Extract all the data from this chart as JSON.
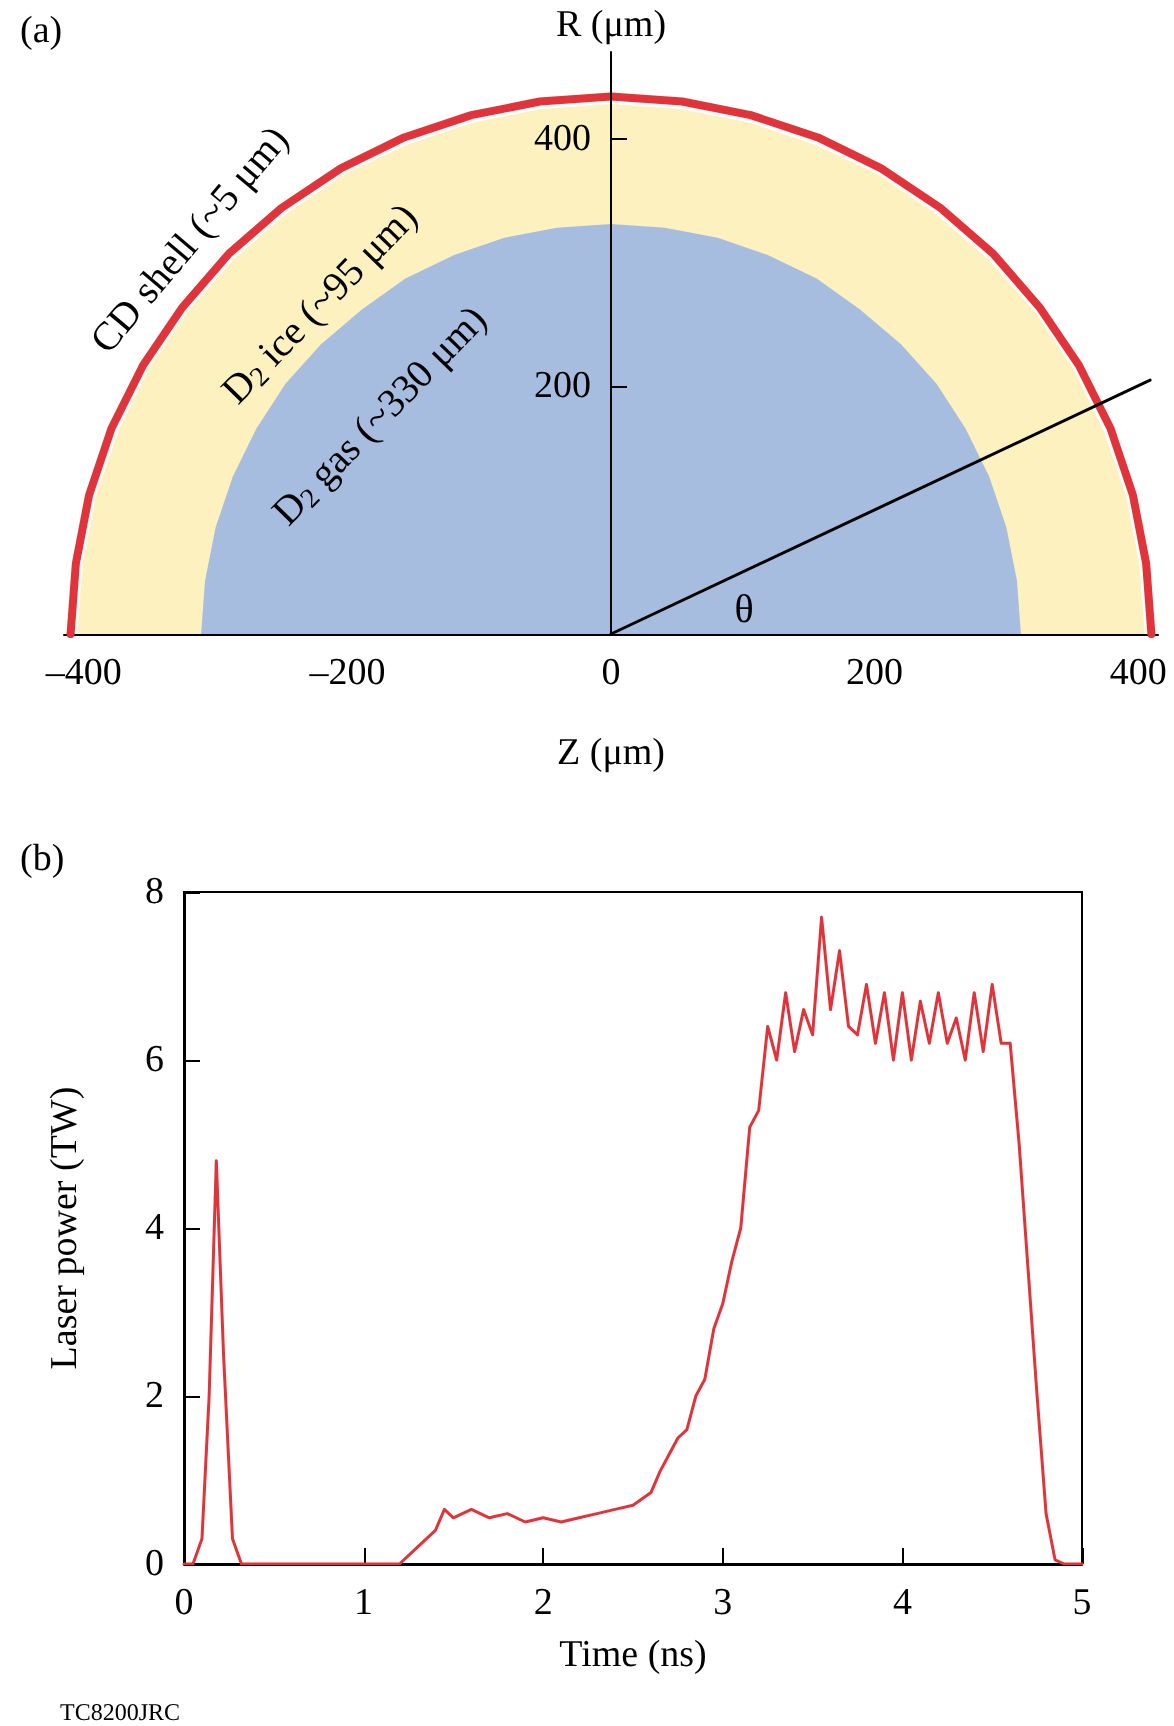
{
  "chart_data": [
    {
      "type": "area",
      "title": "(a)",
      "xlabel": "Z (μm)",
      "ylabel": "R (μm)",
      "xlim": [
        -415,
        415
      ],
      "ylim": [
        0,
        470
      ],
      "xticks": [
        {
          "value": -400,
          "label": "–400"
        },
        {
          "value": -200,
          "label": "–200"
        },
        0,
        200,
        400
      ],
      "yticks": [
        200,
        400
      ],
      "marker": "none",
      "annotations": [
        "CD shell (~5 μm)",
        "D$_{2}$ ice (~95 μm)",
        "D$_{2}$ gas (~330 μm)",
        "θ"
      ],
      "series": [
        {
          "type": "area",
          "color": "#fdf1c0",
          "x": [
            405,
            401,
            391,
            374,
            351,
            321,
            286,
            247,
            203,
            155,
            105,
            53,
            0,
            -53,
            -105,
            -155,
            -203,
            -247,
            -286,
            -321,
            -351,
            -374,
            -391,
            -401,
            -405
          ],
          "values": [
            0,
            56,
            111,
            164,
            214,
            261,
            303,
            339,
            371,
            395,
            413,
            424,
            428,
            424,
            413,
            395,
            371,
            339,
            303,
            261,
            214,
            164,
            111,
            56,
            0
          ]
        },
        {
          "type": "area",
          "color": "#a6bde0",
          "x": [
            311,
            308,
            300,
            287,
            269,
            247,
            220,
            189,
            156,
            119,
            81,
            41,
            0,
            -41,
            -81,
            -119,
            -156,
            -189,
            -220,
            -247,
            -269,
            -287,
            -300,
            -308,
            -311
          ],
          "values": [
            0,
            43,
            86,
            127,
            166,
            202,
            234,
            262,
            287,
            306,
            320,
            328,
            331,
            328,
            320,
            306,
            287,
            262,
            234,
            202,
            166,
            127,
            86,
            43,
            0
          ]
        },
        {
          "type": "line",
          "color": "#e0343a",
          "x": [
            410,
            406,
            396,
            379,
            355,
            325,
            290,
            250,
            205,
            157,
            106,
            54,
            0,
            -54,
            -106,
            -157,
            -205,
            -250,
            -290,
            -325,
            -355,
            -379,
            -396,
            -406,
            -410
          ],
          "values": [
            0,
            57,
            112,
            166,
            217,
            264,
            307,
            344,
            376,
            401,
            419,
            430,
            434,
            430,
            419,
            401,
            376,
            344,
            307,
            264,
            217,
            166,
            112,
            57,
            0
          ]
        },
        {
          "type": "line",
          "color": "#000000",
          "x": [
            0,
            409
          ],
          "values": [
            0,
            205
          ]
        }
      ]
    },
    {
      "type": "line",
      "title": "(b)",
      "xlabel": "Time (ns)",
      "ylabel": "Laser power (TW)",
      "xlim": [
        0,
        5
      ],
      "ylim": [
        0,
        8
      ],
      "xticks": [
        0,
        1,
        2,
        3,
        4,
        5
      ],
      "yticks": [
        0,
        2,
        4,
        6,
        8
      ],
      "marker": "none",
      "annotations": [
        "TC8200JRC"
      ],
      "series": [
        {
          "color": "#e0343a",
          "x": [
            0,
            0.05,
            0.1,
            0.14,
            0.18,
            0.22,
            0.27,
            0.32,
            1.2,
            1.3,
            1.4,
            1.45,
            1.5,
            1.6,
            1.7,
            1.8,
            1.9,
            2.0,
            2.1,
            2.2,
            2.3,
            2.4,
            2.5,
            2.6,
            2.65,
            2.7,
            2.75,
            2.8,
            2.85,
            2.9,
            2.95,
            3.0,
            3.05,
            3.1,
            3.15,
            3.2,
            3.25,
            3.3,
            3.35,
            3.4,
            3.45,
            3.5,
            3.55,
            3.6,
            3.65,
            3.7,
            3.75,
            3.8,
            3.85,
            3.9,
            3.95,
            4.0,
            4.05,
            4.1,
            4.15,
            4.2,
            4.25,
            4.3,
            4.35,
            4.4,
            4.45,
            4.5,
            4.55,
            4.6,
            4.65,
            4.7,
            4.75,
            4.8,
            4.85,
            4.9,
            5
          ],
          "values": [
            0,
            0,
            0.3,
            2,
            4.8,
            2.5,
            0.3,
            0,
            0,
            0.2,
            0.4,
            0.65,
            0.55,
            0.65,
            0.55,
            0.6,
            0.5,
            0.55,
            0.5,
            0.55,
            0.6,
            0.65,
            0.7,
            0.85,
            1.1,
            1.3,
            1.5,
            1.6,
            2.0,
            2.2,
            2.8,
            3.1,
            3.6,
            4.0,
            5.2,
            5.4,
            6.4,
            6.0,
            6.8,
            6.1,
            6.6,
            6.3,
            7.7,
            6.6,
            7.3,
            6.4,
            6.3,
            6.9,
            6.2,
            6.8,
            6.0,
            6.8,
            6.0,
            6.7,
            6.2,
            6.8,
            6.2,
            6.5,
            6.0,
            6.8,
            6.1,
            6.9,
            6.2,
            6.2,
            5.0,
            3.5,
            2.0,
            0.6,
            0.05,
            0,
            0
          ]
        }
      ]
    }
  ]
}
